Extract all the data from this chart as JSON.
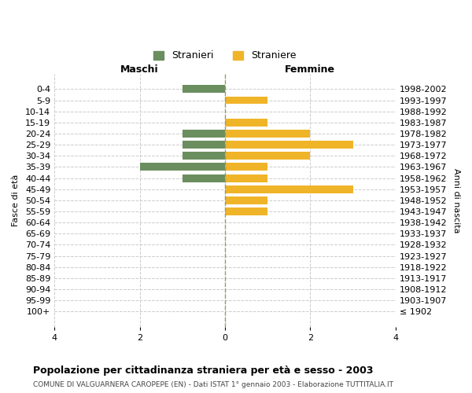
{
  "age_groups": [
    "100+",
    "95-99",
    "90-94",
    "85-89",
    "80-84",
    "75-79",
    "70-74",
    "65-69",
    "60-64",
    "55-59",
    "50-54",
    "45-49",
    "40-44",
    "35-39",
    "30-34",
    "25-29",
    "20-24",
    "15-19",
    "10-14",
    "5-9",
    "0-4"
  ],
  "birth_years": [
    "≤ 1902",
    "1903-1907",
    "1908-1912",
    "1913-1917",
    "1918-1922",
    "1923-1927",
    "1928-1932",
    "1933-1937",
    "1938-1942",
    "1943-1947",
    "1948-1952",
    "1953-1957",
    "1958-1962",
    "1963-1967",
    "1968-1972",
    "1973-1977",
    "1978-1982",
    "1983-1987",
    "1988-1992",
    "1993-1997",
    "1998-2002"
  ],
  "maschi": [
    0,
    0,
    0,
    0,
    0,
    0,
    0,
    0,
    0,
    0,
    0,
    0,
    1,
    2,
    1,
    1,
    1,
    0,
    0,
    0,
    1
  ],
  "femmine": [
    0,
    0,
    0,
    0,
    0,
    0,
    0,
    0,
    0,
    1,
    1,
    3,
    1,
    1,
    2,
    3,
    2,
    1,
    0,
    1,
    0
  ],
  "color_maschi": "#6b8e5e",
  "color_femmine": "#f0b429",
  "xlim": 4,
  "title": "Popolazione per cittadinanza straniera per età e sesso - 2003",
  "subtitle": "COMUNE DI VALGUARNERA CAROPEPE (EN) - Dati ISTAT 1° gennaio 2003 - Elaborazione TUTTITALIA.IT",
  "xlabel_left": "Maschi",
  "xlabel_right": "Femmine",
  "ylabel_left": "Fasce di età",
  "ylabel_right": "Anni di nascita",
  "legend_stranieri": "Stranieri",
  "legend_straniere": "Straniere",
  "bg_color": "#ffffff",
  "grid_color": "#cccccc"
}
